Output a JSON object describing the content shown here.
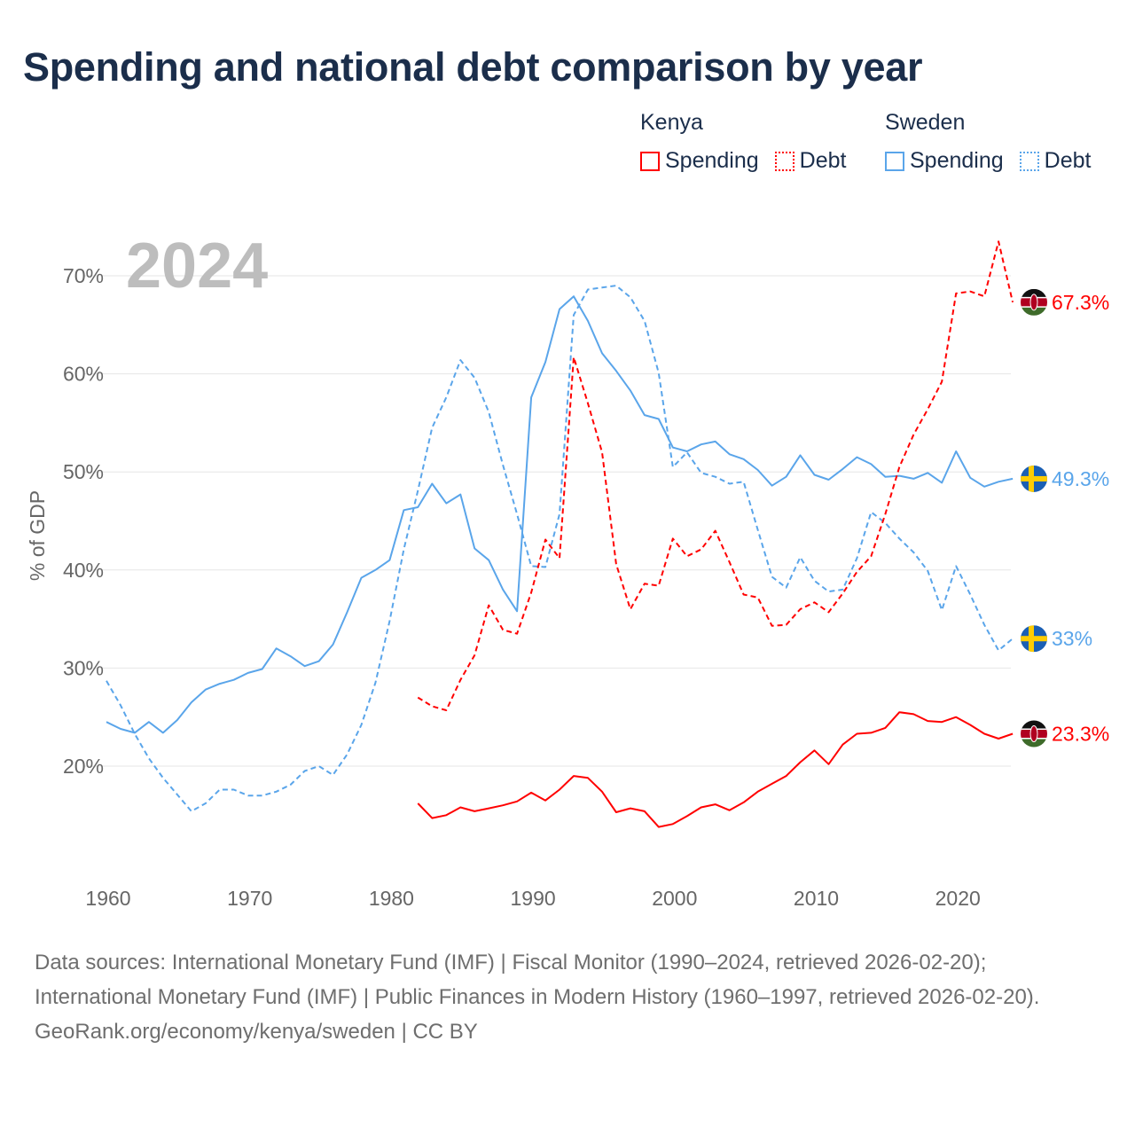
{
  "title": "Spending and national debt comparison by year",
  "legend": {
    "groups": [
      {
        "name": "Kenya",
        "items": [
          {
            "label": "Spending",
            "style": "solid",
            "color": "#ff0000"
          },
          {
            "label": "Debt",
            "style": "dotted",
            "color": "#ff0000"
          }
        ]
      },
      {
        "name": "Sweden",
        "items": [
          {
            "label": "Spending",
            "style": "solid",
            "color": "#5aa5ea"
          },
          {
            "label": "Debt",
            "style": "dotted",
            "color": "#5aa5ea"
          }
        ]
      }
    ]
  },
  "year_watermark": "2024",
  "footer": {
    "sources": "Data sources: International Monetary Fund (IMF) | Fiscal Monitor (1990–2024, retrieved 2026-02-20); International Monetary Fund (IMF) | Public Finances in Modern History (1960–1997, retrieved 2026-02-20).",
    "credit": "GeoRank.org/economy/kenya/sweden | CC BY"
  },
  "chart_data": {
    "type": "line",
    "title": "Spending and national debt comparison by year",
    "xlabel": "",
    "ylabel": "% of GDP",
    "xlim": [
      1960,
      2024
    ],
    "ylim": [
      10,
      73
    ],
    "x_ticks": [
      1960,
      1970,
      1980,
      1990,
      2000,
      2010,
      2020
    ],
    "x_tick_labels": [
      "1960",
      "1970",
      "1980",
      "1990",
      "2000",
      "2010",
      "2020"
    ],
    "y_ticks": [
      20,
      30,
      40,
      50,
      60,
      70
    ],
    "y_tick_labels": [
      "20%",
      "30%",
      "40%",
      "50%",
      "60%",
      "70%"
    ],
    "grid": true,
    "legend_position": "top-right",
    "series": [
      {
        "name": "Sweden Spending",
        "country": "Sweden",
        "color": "#5aa5ea",
        "dash": "solid",
        "end_label": "49.3%",
        "flag": "sweden",
        "start": 1960,
        "values": [
          24.5,
          23.8,
          23.4,
          24.5,
          23.4,
          24.7,
          26.5,
          27.8,
          28.4,
          28.8,
          29.5,
          29.9,
          32.0,
          31.2,
          30.2,
          30.7,
          32.4,
          35.7,
          39.2,
          40.0,
          41.0,
          46.1,
          46.4,
          48.8,
          46.8,
          47.7,
          42.2,
          41.0,
          38.0,
          35.8,
          57.6,
          61.2,
          66.6,
          67.9,
          65.4,
          62.1,
          60.3,
          58.3,
          55.8,
          55.4,
          52.5,
          52.1,
          52.8,
          53.1,
          51.8,
          51.3,
          50.2,
          48.6,
          49.5,
          51.7,
          49.7,
          49.2,
          50.3,
          51.5,
          50.8,
          49.5,
          49.6,
          49.3,
          49.9,
          48.9,
          52.1,
          49.4,
          48.5,
          49.0,
          49.3
        ]
      },
      {
        "name": "Sweden Debt",
        "country": "Sweden",
        "color": "#5aa5ea",
        "dash": "dashed",
        "end_label": "33%",
        "flag": "sweden",
        "start": 1960,
        "values": [
          28.7,
          26.2,
          23.3,
          20.8,
          18.8,
          17.1,
          15.4,
          16.2,
          17.6,
          17.6,
          17.0,
          17.0,
          17.4,
          18.1,
          19.5,
          20.0,
          19.1,
          21.2,
          24.2,
          28.5,
          34.8,
          42.1,
          48.1,
          54.5,
          57.6,
          61.4,
          59.6,
          56.1,
          50.7,
          45.7,
          40.4,
          40.3,
          45.7,
          66.0,
          68.6,
          68.8,
          69.0,
          67.8,
          65.4,
          60.1,
          50.5,
          52.0,
          49.9,
          49.5,
          48.8,
          49.0,
          44.1,
          39.3,
          38.2,
          41.3,
          38.9,
          37.8,
          38.0,
          41.2,
          45.9,
          44.8,
          43.2,
          41.8,
          39.9,
          35.9,
          40.4,
          37.5,
          34.4,
          31.8,
          33.0
        ]
      },
      {
        "name": "Kenya Spending",
        "country": "Kenya",
        "color": "#ff0000",
        "dash": "solid",
        "end_label": "23.3%",
        "flag": "kenya",
        "start": 1982,
        "values": [
          16.2,
          14.7,
          15.0,
          15.8,
          15.4,
          15.7,
          16.0,
          16.4,
          17.3,
          16.5,
          17.6,
          19.0,
          18.8,
          17.4,
          15.3,
          15.7,
          15.4,
          13.8,
          14.1,
          14.9,
          15.8,
          16.1,
          15.5,
          16.3,
          17.4,
          18.2,
          19.0,
          20.4,
          21.6,
          20.2,
          22.2,
          23.3,
          23.4,
          23.9,
          25.5,
          25.3,
          24.6,
          24.5,
          25.0,
          24.2,
          23.3,
          22.8,
          23.3
        ]
      },
      {
        "name": "Kenya Debt",
        "country": "Kenya",
        "color": "#ff0000",
        "dash": "dashed",
        "end_label": "67.3%",
        "flag": "kenya",
        "start": 1982,
        "values": [
          27.0,
          26.1,
          25.7,
          28.8,
          31.3,
          36.4,
          33.9,
          33.5,
          37.7,
          43.1,
          41.2,
          61.7,
          57.0,
          52.0,
          40.6,
          36.0,
          38.6,
          38.4,
          43.2,
          41.4,
          42.1,
          44.0,
          40.8,
          37.5,
          37.2,
          34.3,
          34.4,
          36.0,
          36.7,
          35.7,
          37.6,
          39.8,
          41.4,
          45.7,
          50.5,
          53.8,
          56.4,
          59.2,
          68.2,
          68.4,
          67.9,
          73.5,
          67.3
        ]
      }
    ]
  }
}
